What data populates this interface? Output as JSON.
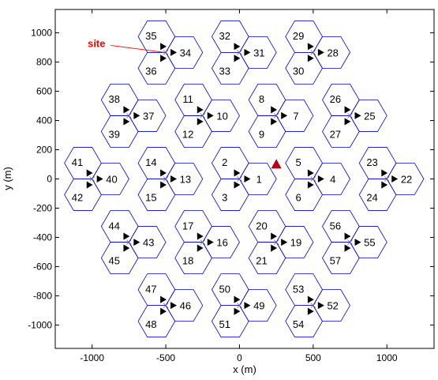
{
  "chart_data": {
    "type": "scatter",
    "title": "",
    "xlabel": "x (m)",
    "ylabel": "y (m)",
    "xlim": [
      -1250,
      1320
    ],
    "ylim": [
      -1160,
      1160
    ],
    "xticks": [
      -1000,
      -500,
      0,
      500,
      1000
    ],
    "yticks": [
      1000,
      800,
      600,
      400,
      200,
      0,
      -200,
      -400,
      -600,
      -800,
      -1000
    ],
    "xtick_labels": [
      "-1000",
      "-500",
      "0",
      "500",
      "1000"
    ],
    "ytick_labels": [
      "1000",
      "800",
      "600",
      "400",
      "200",
      "0",
      "-200",
      "-400",
      "-600",
      "-800",
      "-1000"
    ],
    "grid": false,
    "hex_radius": 125,
    "sites": [
      {
        "x": 0,
        "y": 0
      },
      {
        "x": 500,
        "y": 0
      },
      {
        "x": 250,
        "y": 433
      },
      {
        "x": -250,
        "y": 433
      },
      {
        "x": -500,
        "y": 0
      },
      {
        "x": -250,
        "y": -433
      },
      {
        "x": 250,
        "y": -433
      },
      {
        "x": 750,
        "y": 433
      },
      {
        "x": 1000,
        "y": 0
      },
      {
        "x": 500,
        "y": 866
      },
      {
        "x": 0,
        "y": 866
      },
      {
        "x": -500,
        "y": 866
      },
      {
        "x": -750,
        "y": 433
      },
      {
        "x": -1000,
        "y": 0
      },
      {
        "x": -750,
        "y": -433
      },
      {
        "x": -500,
        "y": -866
      },
      {
        "x": 0,
        "y": -866
      },
      {
        "x": 500,
        "y": -866
      },
      {
        "x": 750,
        "y": -433
      }
    ],
    "cells": [
      {
        "label": "1",
        "x": 133,
        "y": 0
      },
      {
        "label": "2",
        "x": -100,
        "y": 115
      },
      {
        "label": "3",
        "x": -100,
        "y": -125
      },
      {
        "label": "4",
        "x": 633,
        "y": 0
      },
      {
        "label": "5",
        "x": 400,
        "y": 115
      },
      {
        "label": "6",
        "x": 400,
        "y": -125
      },
      {
        "label": "7",
        "x": 383,
        "y": 433
      },
      {
        "label": "8",
        "x": 150,
        "y": 548
      },
      {
        "label": "9",
        "x": 150,
        "y": 308
      },
      {
        "label": "10",
        "x": -117,
        "y": 433
      },
      {
        "label": "11",
        "x": -350,
        "y": 548
      },
      {
        "label": "12",
        "x": -350,
        "y": 308
      },
      {
        "label": "13",
        "x": -367,
        "y": 0
      },
      {
        "label": "14",
        "x": -600,
        "y": 115
      },
      {
        "label": "15",
        "x": -600,
        "y": -125
      },
      {
        "label": "16",
        "x": -117,
        "y": -433
      },
      {
        "label": "17",
        "x": -350,
        "y": -318
      },
      {
        "label": "18",
        "x": -350,
        "y": -558
      },
      {
        "label": "19",
        "x": 383,
        "y": -433
      },
      {
        "label": "20",
        "x": 150,
        "y": -318
      },
      {
        "label": "21",
        "x": 150,
        "y": -558
      },
      {
        "label": "22",
        "x": 1133,
        "y": 0
      },
      {
        "label": "23",
        "x": 900,
        "y": 115
      },
      {
        "label": "24",
        "x": 900,
        "y": -125
      },
      {
        "label": "25",
        "x": 883,
        "y": 433
      },
      {
        "label": "26",
        "x": 650,
        "y": 548
      },
      {
        "label": "27",
        "x": 650,
        "y": 308
      },
      {
        "label": "28",
        "x": 633,
        "y": 866
      },
      {
        "label": "29",
        "x": 400,
        "y": 981
      },
      {
        "label": "30",
        "x": 400,
        "y": 741
      },
      {
        "label": "31",
        "x": 133,
        "y": 866
      },
      {
        "label": "32",
        "x": -100,
        "y": 981
      },
      {
        "label": "33",
        "x": -100,
        "y": 741
      },
      {
        "label": "34",
        "x": -367,
        "y": 866
      },
      {
        "label": "35",
        "x": -600,
        "y": 981
      },
      {
        "label": "36",
        "x": -600,
        "y": 741
      },
      {
        "label": "37",
        "x": -617,
        "y": 433
      },
      {
        "label": "38",
        "x": -850,
        "y": 548
      },
      {
        "label": "39",
        "x": -850,
        "y": 308
      },
      {
        "label": "40",
        "x": -867,
        "y": 0
      },
      {
        "label": "41",
        "x": -1100,
        "y": 115
      },
      {
        "label": "42",
        "x": -1100,
        "y": -125
      },
      {
        "label": "43",
        "x": -617,
        "y": -433
      },
      {
        "label": "44",
        "x": -850,
        "y": -318
      },
      {
        "label": "45",
        "x": -850,
        "y": -558
      },
      {
        "label": "46",
        "x": -367,
        "y": -866
      },
      {
        "label": "47",
        "x": -600,
        "y": -751
      },
      {
        "label": "48",
        "x": -600,
        "y": -991
      },
      {
        "label": "49",
        "x": 133,
        "y": -866
      },
      {
        "label": "50",
        "x": -100,
        "y": -751
      },
      {
        "label": "51",
        "x": -100,
        "y": -991
      },
      {
        "label": "52",
        "x": 633,
        "y": -866
      },
      {
        "label": "53",
        "x": 400,
        "y": -751
      },
      {
        "label": "54",
        "x": 400,
        "y": -991
      },
      {
        "label": "55",
        "x": 883,
        "y": -433
      },
      {
        "label": "56",
        "x": 650,
        "y": -318
      },
      {
        "label": "57",
        "x": 650,
        "y": -558
      }
    ],
    "user_marker": {
      "x": 250,
      "y": 100
    },
    "annotation": {
      "text": "site",
      "x": -970,
      "y": 925,
      "target_x": -510,
      "target_y": 866
    },
    "colors": {
      "hex": "#0000cc",
      "user": "#c0001a",
      "annotation": "#ff0000",
      "antenna": "#000000"
    }
  }
}
